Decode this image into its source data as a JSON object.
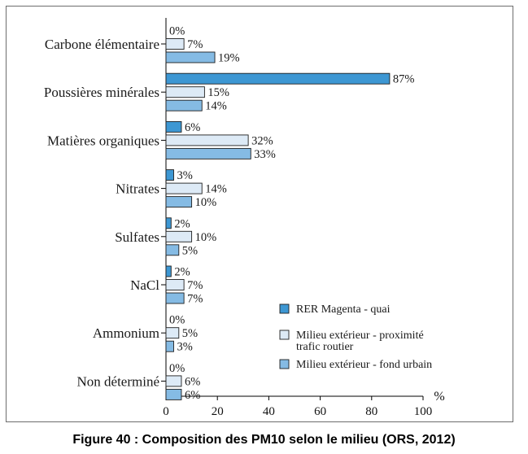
{
  "chart_data": {
    "type": "bar",
    "orientation": "horizontal",
    "categories": [
      "Carbone élémentaire",
      "Poussières minérales",
      "Matières organiques",
      "Nitrates",
      "Sulfates",
      "NaCl",
      "Ammonium",
      "Non déterminé"
    ],
    "series": [
      {
        "name": "RER Magenta - quai",
        "color": "#3d97d3",
        "values": [
          0,
          87,
          6,
          3,
          2,
          2,
          0,
          0
        ],
        "labels": [
          "0%",
          "87%",
          "6%",
          "3%",
          "2%",
          "2%",
          "0%",
          "0%"
        ]
      },
      {
        "name": "Milieu extérieur - proximité trafic routier",
        "name_lines": [
          "Milieu extérieur - proximité",
          "trafic routier"
        ],
        "color": "#ddeaf6",
        "values": [
          7,
          15,
          32,
          14,
          10,
          7,
          5,
          6
        ],
        "labels": [
          "7%",
          "15%",
          "32%",
          "14%",
          "10%",
          "7%",
          "5%",
          "6%"
        ]
      },
      {
        "name": "Milieu extérieur - fond urbain",
        "color": "#85bbe4",
        "values": [
          19,
          14,
          33,
          10,
          5,
          7,
          3,
          6
        ],
        "labels": [
          "19%",
          "14%",
          "33%",
          "10%",
          "5%",
          "7%",
          "3%",
          "6%"
        ]
      }
    ],
    "xlim": [
      0,
      100
    ],
    "xticks": [
      0,
      20,
      40,
      60,
      80,
      100
    ],
    "xticklabels": [
      "0",
      "20",
      "40",
      "60",
      "80",
      "100"
    ],
    "xunit": "%",
    "legend_position": "bottom-right",
    "grid": false
  },
  "caption": "Figure 40 : Composition des PM10 selon le milieu (ORS, 2012)"
}
